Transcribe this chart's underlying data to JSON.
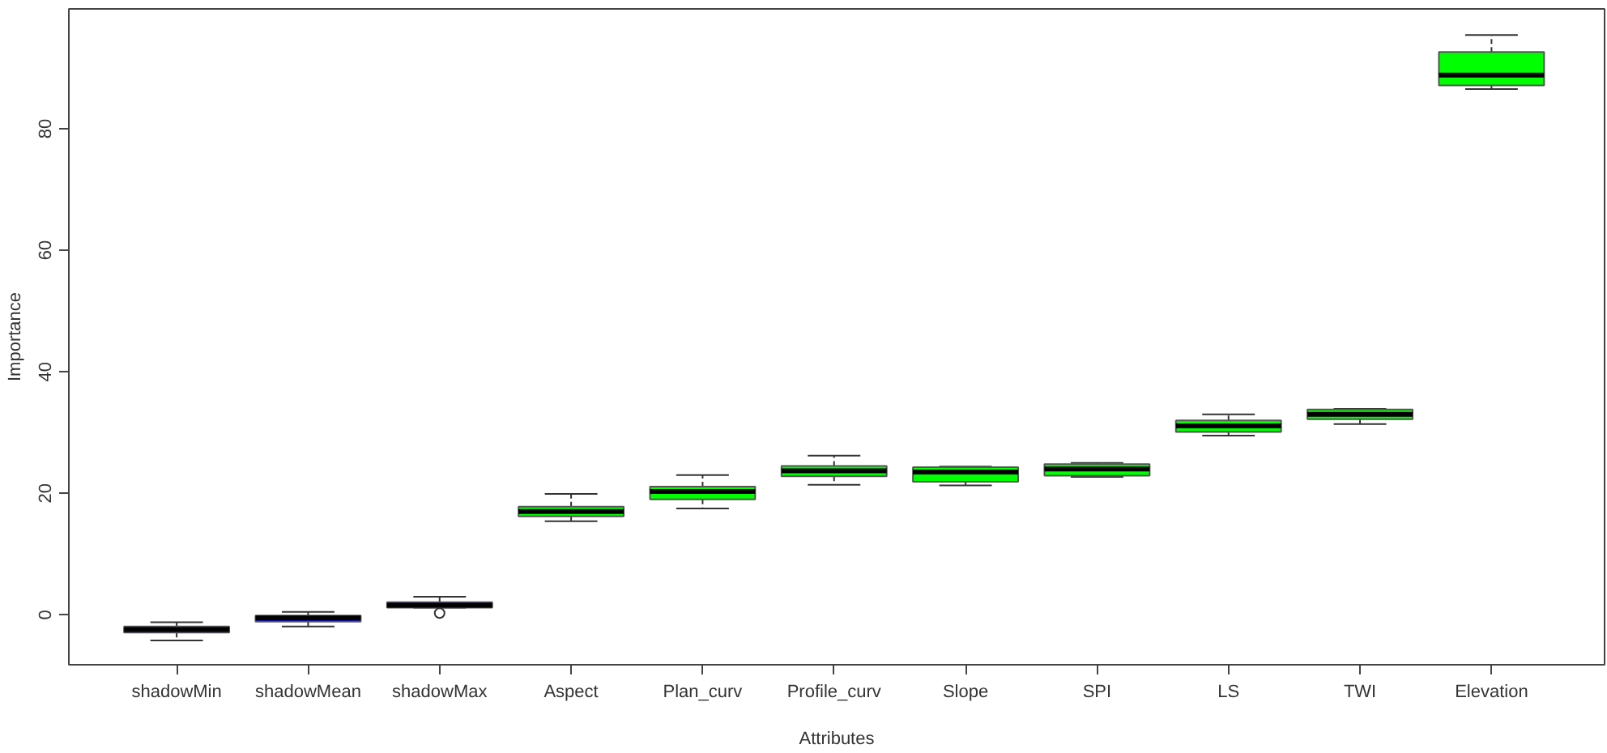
{
  "chart_data": {
    "type": "box",
    "xlabel": "Attributes",
    "ylabel": "Importance",
    "categories": [
      "shadowMin",
      "shadowMean",
      "shadowMax",
      "Aspect",
      "Plan_curv",
      "Profile_curv",
      "Slope",
      "SPI",
      "LS",
      "TWI",
      "Elevation"
    ],
    "boxes": [
      {
        "low": -4.2,
        "q1": -2.9,
        "median": -2.4,
        "q3": -1.9,
        "high": -1.2
      },
      {
        "low": -1.9,
        "q1": -1.1,
        "median": -0.5,
        "q3": -0.1,
        "high": 0.5
      },
      {
        "low": 1.2,
        "q1": 1.2,
        "median": 1.6,
        "q3": 2.1,
        "high": 3.0,
        "outliers": [
          0.3
        ]
      },
      {
        "low": 15.4,
        "q1": 16.2,
        "median": 17.0,
        "q3": 17.8,
        "high": 19.9
      },
      {
        "low": 17.5,
        "q1": 19.0,
        "median": 20.3,
        "q3": 21.1,
        "high": 23.0
      },
      {
        "low": 21.4,
        "q1": 22.8,
        "median": 23.7,
        "q3": 24.5,
        "high": 26.2
      },
      {
        "low": 21.3,
        "q1": 21.9,
        "median": 23.5,
        "q3": 24.3,
        "high": 24.4
      },
      {
        "low": 22.7,
        "q1": 22.9,
        "median": 24.0,
        "q3": 24.8,
        "high": 25.0
      },
      {
        "low": 29.5,
        "q1": 30.1,
        "median": 31.1,
        "q3": 32.0,
        "high": 33.0
      },
      {
        "low": 31.4,
        "q1": 32.2,
        "median": 33.0,
        "q3": 33.8,
        "high": 33.9
      },
      {
        "low": 86.5,
        "q1": 87.1,
        "median": 88.8,
        "q3": 92.6,
        "high": 95.4
      }
    ],
    "colors": [
      "#0000ff",
      "#0000ff",
      "#0000ff",
      "#00ff00",
      "#00ff00",
      "#00ff00",
      "#00ff00",
      "#00ff00",
      "#00ff00",
      "#00ff00",
      "#00ff00"
    ],
    "ylim": [
      -8.2,
      99.7
    ],
    "yticks": [
      0,
      20,
      40,
      60,
      80
    ]
  }
}
